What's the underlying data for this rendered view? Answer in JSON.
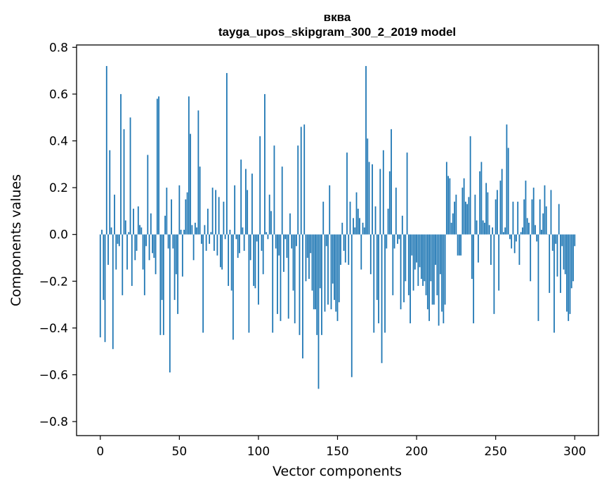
{
  "chart_data": {
    "type": "bar",
    "title": "вква",
    "subtitle": "tayga_upos_skipgram_300_2_2019 model",
    "xlabel": "Vector components",
    "ylabel": "Components values",
    "xlim": [
      -15,
      315
    ],
    "ylim": [
      -0.86,
      0.81
    ],
    "xticks": [
      0,
      50,
      100,
      150,
      200,
      250,
      300
    ],
    "yticks": [
      0.8,
      0.6,
      0.4,
      0.2,
      0.0,
      -0.2,
      -0.4,
      -0.6,
      -0.8
    ],
    "ytick_labels": [
      "0.8",
      "0.6",
      "0.4",
      "0.2",
      "0.0",
      "−0.2",
      "−0.4",
      "−0.6",
      "−0.8"
    ],
    "bar_color": "#1f77b4",
    "values": [
      -0.44,
      0.02,
      -0.28,
      -0.46,
      0.72,
      -0.13,
      0.36,
      0.03,
      -0.49,
      0.17,
      -0.15,
      -0.04,
      -0.05,
      0.6,
      -0.26,
      0.45,
      0.06,
      -0.15,
      0.01,
      0.5,
      -0.22,
      0.11,
      -0.11,
      -0.07,
      0.12,
      0.04,
      0.03,
      -0.15,
      -0.26,
      -0.05,
      0.34,
      -0.11,
      0.09,
      -0.08,
      -0.1,
      -0.17,
      0.58,
      0.59,
      -0.43,
      -0.28,
      -0.43,
      0.08,
      0.2,
      -0.06,
      -0.59,
      0.15,
      -0.06,
      -0.28,
      -0.17,
      -0.34,
      0.21,
      0.02,
      -0.18,
      0.02,
      0.15,
      0.18,
      0.59,
      0.43,
      0.04,
      -0.11,
      0.05,
      0.03,
      0.53,
      0.29,
      -0.04,
      -0.42,
      0.04,
      -0.07,
      0.11,
      -0.04,
      0.01,
      0.2,
      -0.07,
      0.19,
      -0.09,
      0.16,
      -0.14,
      -0.15,
      0.14,
      -0.02,
      0.69,
      -0.22,
      0.02,
      -0.24,
      -0.45,
      0.21,
      -0.02,
      -0.1,
      -0.08,
      0.32,
      0.03,
      -0.07,
      0.28,
      0.19,
      -0.42,
      -0.11,
      0.26,
      -0.22,
      -0.23,
      -0.03,
      -0.3,
      0.42,
      -0.07,
      -0.17,
      0.6,
      0.01,
      -0.02,
      0.17,
      0.1,
      -0.42,
      0.38,
      -0.06,
      -0.34,
      -0.09,
      -0.37,
      0.29,
      -0.16,
      -0.02,
      -0.1,
      -0.36,
      0.09,
      -0.06,
      -0.24,
      -0.38,
      -0.05,
      0.38,
      -0.43,
      0.46,
      -0.53,
      0.47,
      -0.2,
      -0.1,
      -0.19,
      -0.08,
      -0.24,
      -0.32,
      -0.32,
      -0.43,
      -0.66,
      -0.23,
      -0.43,
      0.14,
      -0.33,
      -0.05,
      -0.3,
      0.21,
      -0.32,
      -0.21,
      -0.28,
      -0.33,
      -0.37,
      -0.29,
      -0.13,
      0.05,
      -0.07,
      -0.12,
      0.35,
      -0.13,
      0.14,
      -0.61,
      0.07,
      0.03,
      0.18,
      0.11,
      0.07,
      -0.15,
      0.05,
      0.03,
      0.72,
      0.41,
      0.31,
      -0.17,
      0.3,
      -0.42,
      0.12,
      -0.28,
      -0.38,
      0.28,
      -0.55,
      0.36,
      -0.42,
      -0.06,
      0.11,
      0.27,
      0.45,
      -0.26,
      -0.06,
      0.2,
      -0.04,
      -0.02,
      -0.32,
      0.08,
      -0.29,
      -0.2,
      0.35,
      -0.26,
      -0.38,
      -0.09,
      -0.24,
      -0.15,
      -0.12,
      -0.22,
      -0.14,
      -0.19,
      -0.22,
      -0.2,
      -0.26,
      -0.32,
      -0.37,
      -0.2,
      -0.3,
      -0.3,
      -0.13,
      -0.26,
      -0.39,
      -0.17,
      -0.33,
      -0.38,
      -0.3,
      0.31,
      0.25,
      0.24,
      0.05,
      0.09,
      0.14,
      0.17,
      -0.09,
      -0.09,
      -0.09,
      0.2,
      0.24,
      0.14,
      0.13,
      0.16,
      0.42,
      -0.19,
      -0.38,
      0.17,
      0.06,
      -0.12,
      0.27,
      0.31,
      0.06,
      0.05,
      0.22,
      0.18,
      0.04,
      -0.13,
      0.03,
      -0.34,
      0.15,
      0.19,
      -0.24,
      0.23,
      0.28,
      0.01,
      0.03,
      0.47,
      0.37,
      -0.02,
      -0.06,
      0.14,
      -0.08,
      -0.03,
      0.14,
      -0.13,
      0.01,
      0.03,
      0.15,
      0.23,
      0.07,
      0.05,
      -0.2,
      0.15,
      0.2,
      0.04,
      -0.03,
      -0.37,
      0.15,
      0.02,
      0.09,
      0.21,
      0.12,
      0.0,
      -0.25,
      0.19,
      -0.07,
      -0.42,
      -0.04,
      -0.18,
      0.13,
      -0.25,
      -0.05,
      -0.15,
      -0.17,
      -0.33,
      -0.37,
      -0.34,
      -0.23,
      -0.2,
      -0.05
    ]
  }
}
